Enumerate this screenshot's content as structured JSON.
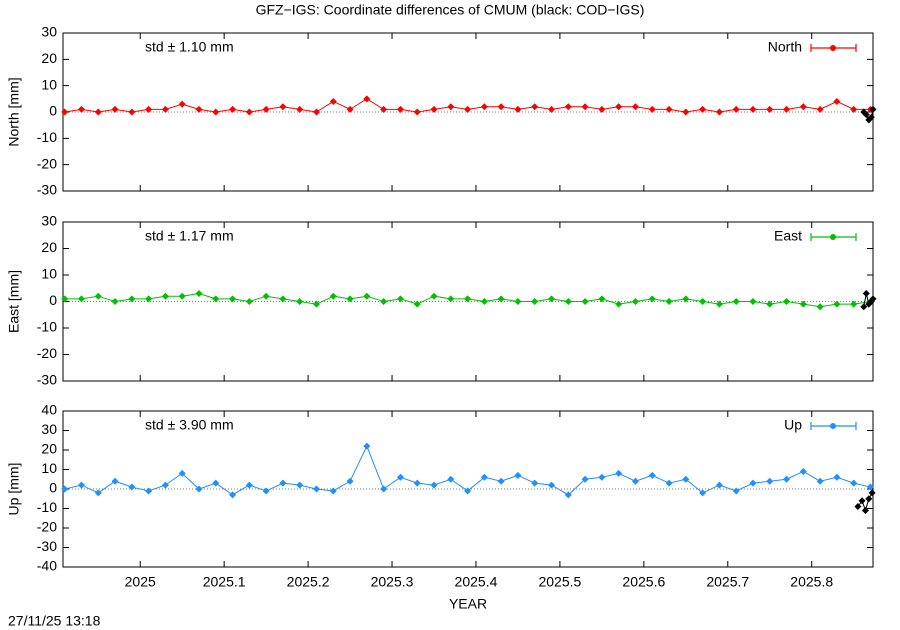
{
  "title": "GFZ−IGS: Coordinate differences of CMUM (black: COD−IGS)",
  "timestamp": "27/11/25 13:18",
  "chart_data": [
    {
      "type": "line",
      "ylabel": "North [mm]",
      "annotation": "std ± 1.10 mm",
      "xlim": [
        2024.908,
        2025.873
      ],
      "xticks": [
        2025,
        2025.1,
        2025.2,
        2025.3,
        2025.4,
        2025.5,
        2025.6,
        2025.7,
        2025.8
      ],
      "ylim": [
        -30,
        30
      ],
      "yticks": [
        -30,
        -20,
        -10,
        0,
        10,
        20,
        30
      ],
      "series": [
        {
          "name": "North",
          "color": "#ff0000",
          "x": [
            2024.91,
            2024.93,
            2024.95,
            2024.97,
            2024.99,
            2025.01,
            2025.03,
            2025.05,
            2025.07,
            2025.09,
            2025.11,
            2025.13,
            2025.15,
            2025.17,
            2025.19,
            2025.21,
            2025.23,
            2025.25,
            2025.27,
            2025.29,
            2025.31,
            2025.33,
            2025.35,
            2025.37,
            2025.39,
            2025.41,
            2025.43,
            2025.45,
            2025.47,
            2025.49,
            2025.51,
            2025.53,
            2025.55,
            2025.57,
            2025.59,
            2025.61,
            2025.63,
            2025.65,
            2025.67,
            2025.69,
            2025.71,
            2025.73,
            2025.75,
            2025.77,
            2025.79,
            2025.81,
            2025.83,
            2025.85,
            2025.87
          ],
          "values": [
            0,
            1,
            0,
            1,
            0,
            1,
            1,
            3,
            1,
            0,
            1,
            0,
            1,
            2,
            1,
            0,
            4,
            1,
            5,
            1,
            1,
            0,
            1,
            2,
            1,
            2,
            2,
            1,
            2,
            1,
            2,
            2,
            1,
            2,
            2,
            1,
            1,
            0,
            1,
            0,
            1,
            1,
            1,
            1,
            2,
            1,
            4,
            1,
            1
          ]
        },
        {
          "color": "#000000",
          "x": [
            2025.862,
            2025.865,
            2025.868,
            2025.871,
            2025.873
          ],
          "values": [
            0,
            -1,
            -3,
            -2,
            1
          ]
        }
      ]
    },
    {
      "type": "line",
      "ylabel": "East [mm]",
      "annotation": "std ± 1.17 mm",
      "xlim": [
        2024.908,
        2025.873
      ],
      "xticks": [
        2025,
        2025.1,
        2025.2,
        2025.3,
        2025.4,
        2025.5,
        2025.6,
        2025.7,
        2025.8
      ],
      "ylim": [
        -30,
        30
      ],
      "yticks": [
        -30,
        -20,
        -10,
        0,
        10,
        20,
        30
      ],
      "series": [
        {
          "name": "East",
          "color": "#00c000",
          "x": [
            2024.91,
            2024.93,
            2024.95,
            2024.97,
            2024.99,
            2025.01,
            2025.03,
            2025.05,
            2025.07,
            2025.09,
            2025.11,
            2025.13,
            2025.15,
            2025.17,
            2025.19,
            2025.21,
            2025.23,
            2025.25,
            2025.27,
            2025.29,
            2025.31,
            2025.33,
            2025.35,
            2025.37,
            2025.39,
            2025.41,
            2025.43,
            2025.45,
            2025.47,
            2025.49,
            2025.51,
            2025.53,
            2025.55,
            2025.57,
            2025.59,
            2025.61,
            2025.63,
            2025.65,
            2025.67,
            2025.69,
            2025.71,
            2025.73,
            2025.75,
            2025.77,
            2025.79,
            2025.81,
            2025.83,
            2025.85,
            2025.87
          ],
          "values": [
            1,
            1,
            2,
            0,
            1,
            1,
            2,
            2,
            3,
            1,
            1,
            0,
            2,
            1,
            0,
            -1,
            2,
            1,
            2,
            0,
            1,
            -1,
            2,
            1,
            1,
            0,
            1,
            0,
            0,
            1,
            0,
            0,
            1,
            -1,
            0,
            1,
            0,
            1,
            0,
            -1,
            0,
            0,
            -1,
            0,
            -1,
            -2,
            -1,
            -1,
            0
          ]
        },
        {
          "color": "#000000",
          "x": [
            2025.862,
            2025.865,
            2025.868,
            2025.871,
            2025.873
          ],
          "values": [
            -2,
            3,
            -1,
            0,
            1
          ]
        }
      ]
    },
    {
      "type": "line",
      "ylabel": "Up [mm]",
      "annotation": "std ± 3.90 mm",
      "xlabel": "YEAR",
      "xlim": [
        2024.908,
        2025.873
      ],
      "xticks": [
        2025,
        2025.1,
        2025.2,
        2025.3,
        2025.4,
        2025.5,
        2025.6,
        2025.7,
        2025.8
      ],
      "ylim": [
        -40,
        40
      ],
      "yticks": [
        -40,
        -30,
        -20,
        -10,
        0,
        10,
        20,
        30,
        40
      ],
      "series": [
        {
          "name": "Up",
          "color": "#1e90ff",
          "x": [
            2024.91,
            2024.93,
            2024.95,
            2024.97,
            2024.99,
            2025.01,
            2025.03,
            2025.05,
            2025.07,
            2025.09,
            2025.11,
            2025.13,
            2025.15,
            2025.17,
            2025.19,
            2025.21,
            2025.23,
            2025.25,
            2025.27,
            2025.29,
            2025.31,
            2025.33,
            2025.35,
            2025.37,
            2025.39,
            2025.41,
            2025.43,
            2025.45,
            2025.47,
            2025.49,
            2025.51,
            2025.53,
            2025.55,
            2025.57,
            2025.59,
            2025.61,
            2025.63,
            2025.65,
            2025.67,
            2025.69,
            2025.71,
            2025.73,
            2025.75,
            2025.77,
            2025.79,
            2025.81,
            2025.83,
            2025.85,
            2025.87
          ],
          "values": [
            0,
            2,
            -2,
            4,
            1,
            -1,
            2,
            8,
            0,
            3,
            -3,
            2,
            -1,
            3,
            2,
            0,
            -1,
            4,
            22,
            0,
            6,
            3,
            2,
            5,
            -1,
            6,
            4,
            7,
            3,
            2,
            -3,
            5,
            6,
            8,
            4,
            7,
            3,
            5,
            -2,
            2,
            -1,
            3,
            4,
            5,
            9,
            4,
            6,
            3,
            1
          ]
        },
        {
          "color": "#000000",
          "x": [
            2025.855,
            2025.86,
            2025.864,
            2025.868,
            2025.872
          ],
          "values": [
            -9,
            -6,
            -11,
            -5,
            -2
          ]
        }
      ]
    }
  ]
}
